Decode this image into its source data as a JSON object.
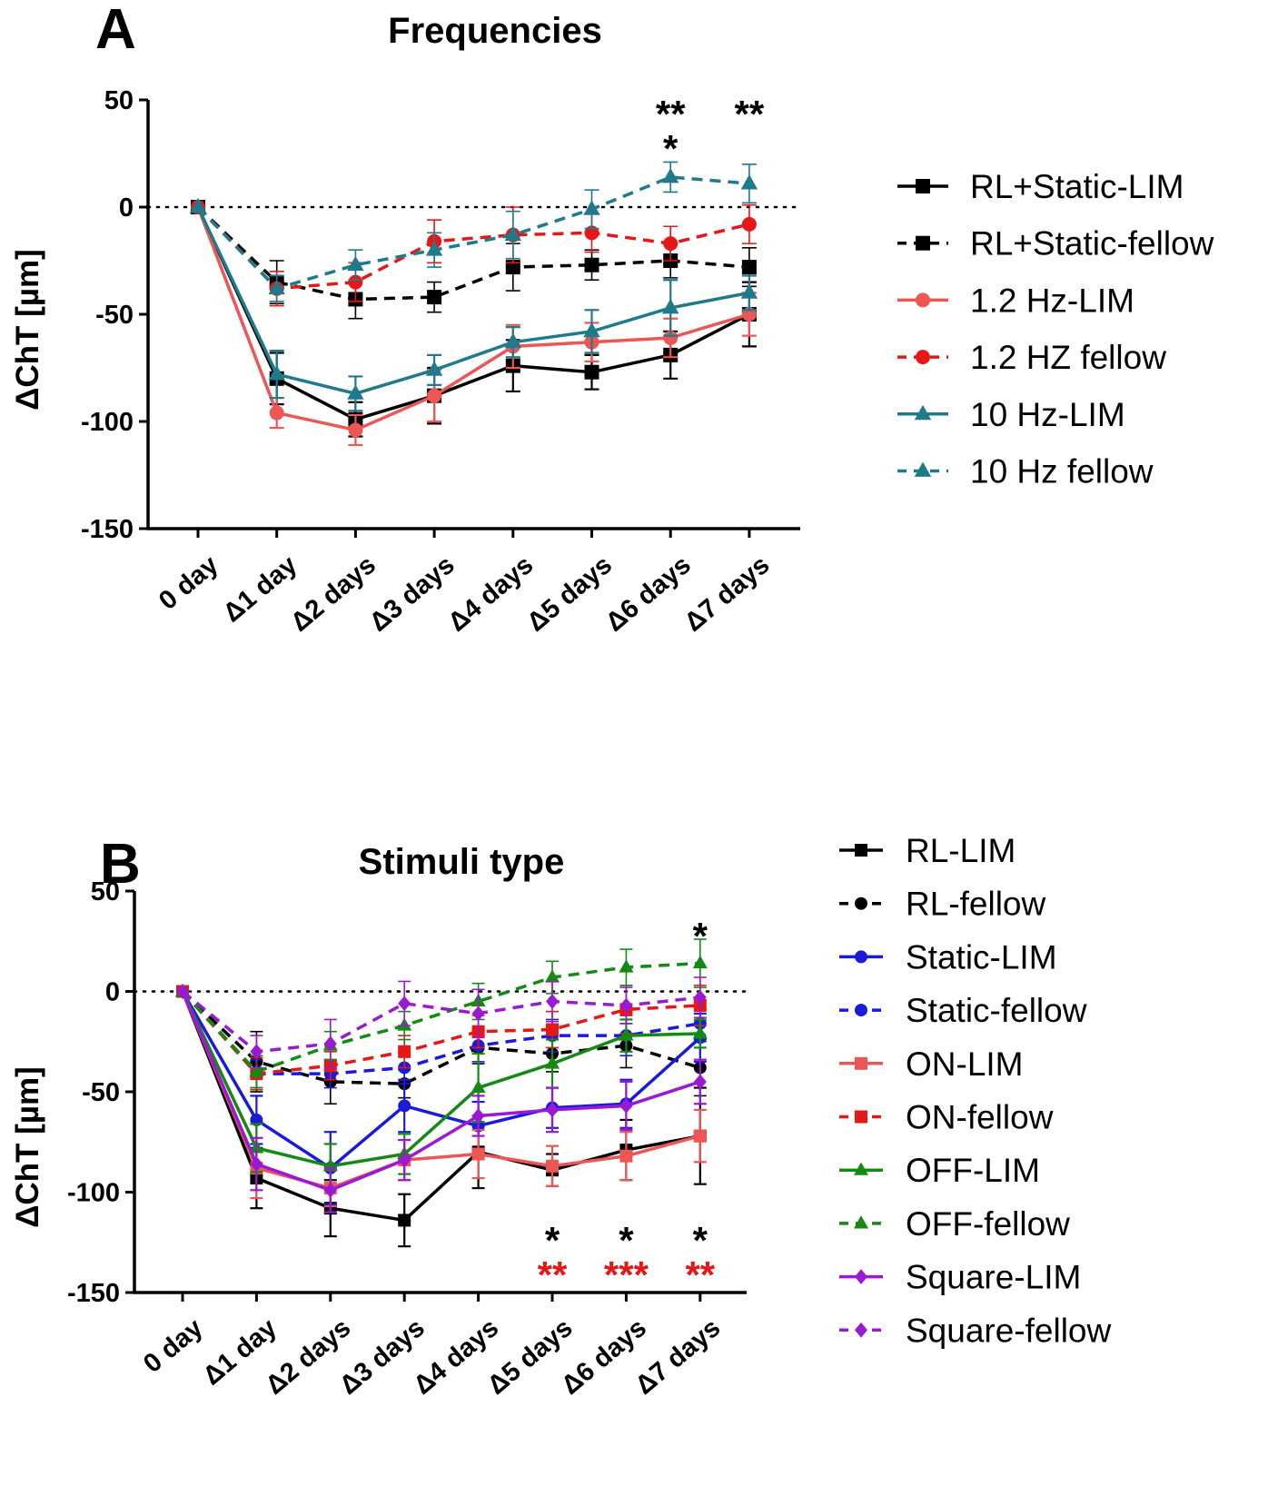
{
  "chart_data": [
    {
      "type": "line",
      "panel": "A",
      "title": "Frequencies",
      "xlabel": "",
      "ylabel": "ΔChT [µm]",
      "ylim": [
        -150,
        50
      ],
      "yticks": [
        "50",
        "0",
        "-50",
        "-100",
        "-150"
      ],
      "ytick_values": [
        50,
        0,
        -50,
        -100,
        -150
      ],
      "categories": [
        "0 day",
        "Δ1 day",
        "Δ2 days",
        "Δ3 days",
        "Δ4 days",
        "Δ5 days",
        "Δ6 days",
        "Δ7 days"
      ],
      "reference_line": 0,
      "series": [
        {
          "name": "RL+Static-LIM",
          "color": "#000000",
          "dashed": false,
          "marker": "square",
          "values": [
            0,
            -80,
            -99,
            -88,
            -74,
            -77,
            -69,
            -50
          ],
          "errors": [
            0,
            12,
            8,
            13,
            12,
            8,
            11,
            15
          ]
        },
        {
          "name": "RL+Static-fellow",
          "color": "#000000",
          "dashed": true,
          "marker": "square",
          "values": [
            0,
            -35,
            -43,
            -42,
            -28,
            -27,
            -25,
            -28
          ],
          "errors": [
            0,
            10,
            9,
            7,
            11,
            7,
            8,
            9
          ]
        },
        {
          "name": "1.2 Hz-LIM",
          "color": "#ee5555",
          "dashed": false,
          "marker": "circle",
          "values": [
            0,
            -96,
            -104,
            -88,
            -65,
            -63,
            -61,
            -50
          ],
          "errors": [
            0,
            7,
            7,
            12,
            10,
            9,
            9,
            10
          ]
        },
        {
          "name": "1.2 HZ fellow",
          "color": "#e61717",
          "dashed": true,
          "marker": "circle",
          "values": [
            0,
            -38,
            -35,
            -16,
            -13,
            -12,
            -17,
            -8
          ],
          "errors": [
            0,
            8,
            9,
            10,
            13,
            9,
            8,
            9
          ]
        },
        {
          "name": "10 Hz-LIM",
          "color": "#1f7a8c",
          "dashed": false,
          "marker": "triangle",
          "values": [
            0,
            -78,
            -87,
            -76,
            -63,
            -58,
            -47,
            -40
          ],
          "errors": [
            0,
            11,
            8,
            7,
            7,
            10,
            13,
            8
          ]
        },
        {
          "name": "10 Hz fellow",
          "color": "#1f7a8c",
          "dashed": true,
          "marker": "triangle",
          "values": [
            0,
            -38,
            -27,
            -20,
            -13,
            -1,
            14,
            11
          ],
          "errors": [
            0,
            6,
            7,
            8,
            11,
            9,
            7,
            9
          ]
        }
      ],
      "annotations": [
        {
          "text": "**",
          "category": "Δ6 days",
          "color": "#000000",
          "row": 1
        },
        {
          "text": "*",
          "category": "Δ6 days",
          "color": "#000000",
          "row": 2
        },
        {
          "text": "**",
          "category": "Δ7 days",
          "color": "#000000",
          "row": 1
        }
      ]
    },
    {
      "type": "line",
      "panel": "B",
      "title": "Stimuli type",
      "xlabel": "",
      "ylabel": "ΔChT [µm]",
      "ylim": [
        -150,
        50
      ],
      "yticks": [
        "50",
        "0",
        "-50",
        "-100",
        "-150"
      ],
      "ytick_values": [
        50,
        0,
        -50,
        -100,
        -150
      ],
      "categories": [
        "0 day",
        "Δ1 day",
        "Δ2 days",
        "Δ3 days",
        "Δ4 days",
        "Δ5 days",
        "Δ6 days",
        "Δ7 days"
      ],
      "reference_line": 0,
      "series": [
        {
          "name": "RL-LIM",
          "color": "#000000",
          "dashed": false,
          "marker": "square",
          "values": [
            0,
            -93,
            -108,
            -114,
            -80,
            -89,
            -79,
            -72
          ],
          "errors": [
            0,
            15,
            14,
            13,
            18,
            8,
            15,
            24
          ]
        },
        {
          "name": "RL-fellow",
          "color": "#000000",
          "dashed": true,
          "marker": "circle",
          "values": [
            0,
            -35,
            -45,
            -46,
            -28,
            -31,
            -27,
            -38
          ],
          "errors": [
            0,
            15,
            11,
            7,
            8,
            9,
            11,
            14
          ]
        },
        {
          "name": "Static-LIM",
          "color": "#1a1adb",
          "dashed": false,
          "marker": "circle",
          "values": [
            0,
            -64,
            -88,
            -57,
            -67,
            -58,
            -56,
            -23
          ],
          "errors": [
            0,
            12,
            18,
            13,
            12,
            10,
            12,
            12
          ]
        },
        {
          "name": "Static-fellow",
          "color": "#1a1adb",
          "dashed": true,
          "marker": "circle",
          "values": [
            0,
            -41,
            -41,
            -38,
            -27,
            -22,
            -22,
            -16
          ],
          "errors": [
            0,
            7,
            7,
            8,
            8,
            8,
            10,
            9
          ]
        },
        {
          "name": "ON-LIM",
          "color": "#ee5555",
          "dashed": false,
          "marker": "square",
          "values": [
            0,
            -88,
            -98,
            -84,
            -81,
            -87,
            -82,
            -72
          ],
          "errors": [
            0,
            15,
            9,
            10,
            12,
            10,
            12,
            13
          ]
        },
        {
          "name": "ON-fellow",
          "color": "#e61717",
          "dashed": true,
          "marker": "square",
          "values": [
            0,
            -41,
            -37,
            -30,
            -20,
            -19,
            -9,
            -7
          ],
          "errors": [
            0,
            8,
            7,
            8,
            8,
            9,
            12,
            10
          ]
        },
        {
          "name": "OFF-LIM",
          "color": "#148a14",
          "dashed": false,
          "marker": "triangle",
          "values": [
            0,
            -78,
            -87,
            -81,
            -48,
            -36,
            -22,
            -21
          ],
          "errors": [
            0,
            12,
            11,
            10,
            17,
            12,
            8,
            7
          ]
        },
        {
          "name": "OFF-fellow",
          "color": "#148a14",
          "dashed": true,
          "marker": "triangle",
          "values": [
            0,
            -40,
            -27,
            -17,
            -5,
            7,
            12,
            14
          ],
          "errors": [
            0,
            8,
            7,
            7,
            9,
            8,
            9,
            12
          ]
        },
        {
          "name": "Square-LIM",
          "color": "#9a1ad4",
          "dashed": false,
          "marker": "diamond",
          "values": [
            0,
            -86,
            -99,
            -84,
            -62,
            -59,
            -57,
            -45
          ],
          "errors": [
            0,
            13,
            11,
            10,
            10,
            11,
            12,
            11
          ]
        },
        {
          "name": "Square-fellow",
          "color": "#9a1ad4",
          "dashed": true,
          "marker": "diamond",
          "values": [
            0,
            -30,
            -26,
            -6,
            -11,
            -5,
            -7,
            -3
          ],
          "errors": [
            0,
            8,
            12,
            11,
            12,
            10,
            9,
            10
          ]
        }
      ],
      "annotations": [
        {
          "text": "*",
          "category": "Δ7 days",
          "color": "#000000",
          "row": 1
        },
        {
          "text": "*",
          "category": "Δ5 days",
          "color": "#000000",
          "row": -1
        },
        {
          "text": "**",
          "category": "Δ5 days",
          "color": "#e61717",
          "row": -2
        },
        {
          "text": "*",
          "category": "Δ6 days",
          "color": "#000000",
          "row": -1
        },
        {
          "text": "***",
          "category": "Δ6 days",
          "color": "#e61717",
          "row": -2
        },
        {
          "text": "*",
          "category": "Δ7 days",
          "color": "#000000",
          "row": -1
        },
        {
          "text": "**",
          "category": "Δ7 days",
          "color": "#e61717",
          "row": -2
        }
      ]
    }
  ]
}
